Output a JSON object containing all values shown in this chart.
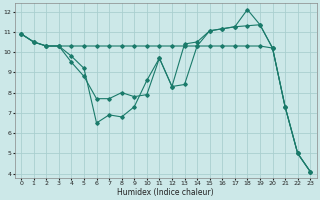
{
  "xlabel": "Humidex (Indice chaleur)",
  "background_color": "#cce8e8",
  "grid_color": "#aacfcf",
  "line_color": "#1a7a6a",
  "xlim": [
    -0.5,
    23.5
  ],
  "ylim": [
    3.8,
    12.4
  ],
  "yticks": [
    4,
    5,
    6,
    7,
    8,
    9,
    10,
    11,
    12
  ],
  "xticks": [
    0,
    1,
    2,
    3,
    4,
    5,
    6,
    7,
    8,
    9,
    10,
    11,
    12,
    13,
    14,
    15,
    16,
    17,
    18,
    19,
    20,
    21,
    22,
    23
  ],
  "line1_x": [
    0,
    1,
    2,
    3,
    4,
    5,
    6,
    7,
    8,
    9,
    10,
    11,
    12,
    13,
    14,
    15,
    16,
    17,
    18,
    19,
    20,
    21,
    22,
    23
  ],
  "line1_y": [
    10.9,
    10.5,
    10.3,
    10.3,
    10.3,
    10.3,
    10.3,
    10.3,
    10.3,
    10.3,
    10.3,
    10.3,
    10.3,
    10.3,
    10.3,
    10.3,
    10.3,
    10.3,
    10.3,
    10.3,
    10.2,
    7.3,
    5.0,
    4.1
  ],
  "line2_x": [
    0,
    1,
    2,
    3,
    4,
    5,
    6,
    7,
    8,
    9,
    10,
    11,
    12,
    13,
    14,
    15,
    16,
    17,
    18,
    19,
    20,
    21,
    22,
    23
  ],
  "line2_y": [
    10.9,
    10.5,
    10.3,
    10.3,
    9.8,
    9.2,
    6.5,
    6.9,
    6.8,
    7.3,
    8.6,
    9.7,
    8.3,
    10.4,
    10.5,
    11.05,
    11.15,
    11.25,
    12.1,
    11.35,
    10.2,
    7.3,
    5.0,
    4.1
  ],
  "line3_x": [
    0,
    1,
    2,
    3,
    4,
    5,
    6,
    7,
    8,
    9,
    10,
    11,
    12,
    13,
    14,
    15,
    16,
    17,
    18,
    19,
    20,
    21,
    22,
    23
  ],
  "line3_y": [
    10.9,
    10.5,
    10.3,
    10.3,
    9.5,
    8.8,
    7.7,
    7.7,
    8.0,
    7.8,
    7.9,
    9.7,
    8.3,
    8.4,
    10.3,
    11.05,
    11.15,
    11.25,
    11.3,
    11.35,
    10.2,
    7.3,
    5.0,
    4.1
  ]
}
